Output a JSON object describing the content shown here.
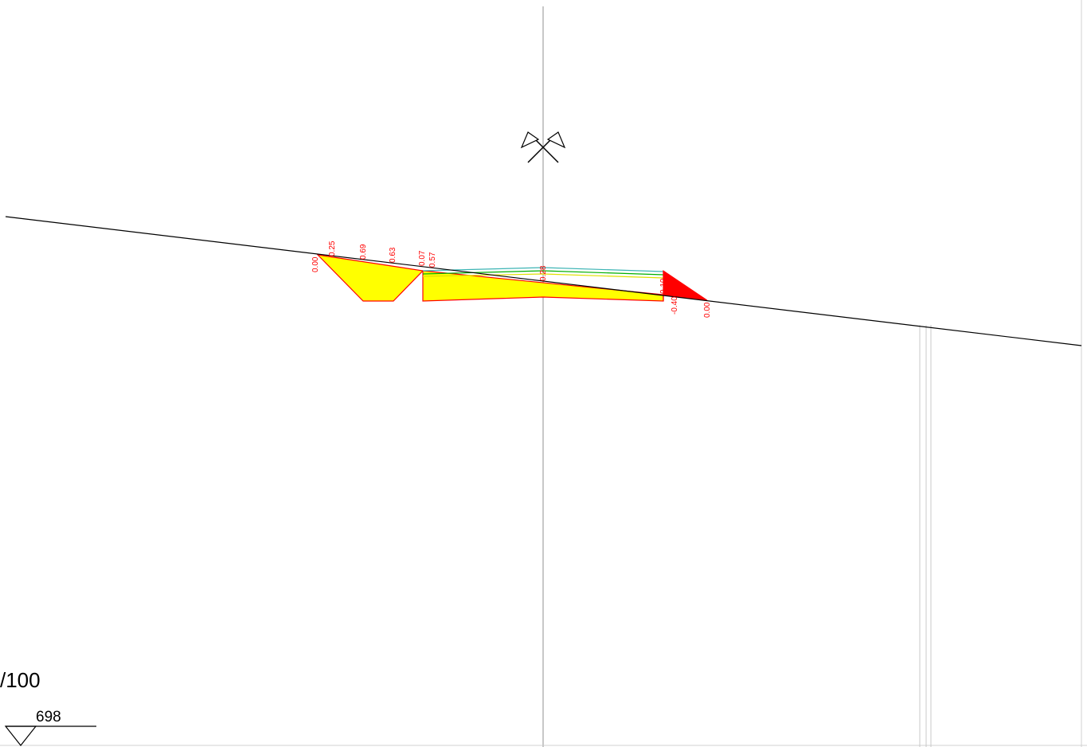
{
  "scale": "/100",
  "elevation_marker": {
    "label": "698"
  },
  "offset_labels": [
    "0.00",
    "0.25",
    "0.69",
    "0.63",
    "0.07",
    "0.57",
    "0.28",
    "0.10",
    "-0.40",
    "0.00"
  ],
  "colors": {
    "fill_cut": "#ffff00",
    "fill_red": "#ff0000",
    "outline": "#ff0000",
    "ground_line": "#000000",
    "axis_line": "#c8c8c8",
    "pavement_green": "#00b000",
    "pavement_cyan": "#3cb4b4"
  }
}
